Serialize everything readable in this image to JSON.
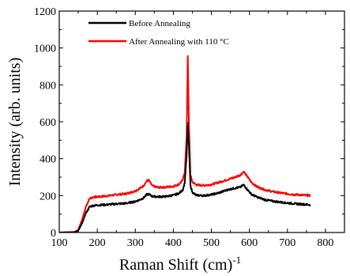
{
  "chart_data": {
    "type": "line",
    "title": "",
    "xlabel": "Raman Shift (cm)",
    "xlabel_sup": "-1",
    "ylabel": "Intensity (arb. units)",
    "xlim": [
      100,
      850
    ],
    "ylim": [
      0,
      1200
    ],
    "x_ticks": [
      "100",
      "200",
      "300",
      "400",
      "500",
      "600",
      "700",
      "800"
    ],
    "y_ticks": [
      "0",
      "200",
      "400",
      "600",
      "800",
      "1000",
      "1200"
    ],
    "legend_position": "top-left",
    "grid": false,
    "series": [
      {
        "name": "Before Annealing",
        "color": "#000000",
        "x": [
          100,
          140,
          150,
          160,
          170,
          180,
          190,
          200,
          225,
          250,
          275,
          300,
          320,
          330,
          335,
          345,
          360,
          380,
          400,
          415,
          425,
          430,
          435,
          438,
          441,
          445,
          450,
          460,
          480,
          500,
          520,
          540,
          560,
          575,
          585,
          595,
          605,
          620,
          640,
          660,
          680,
          700,
          720,
          740,
          760
        ],
        "y": [
          0,
          2,
          10,
          50,
          105,
          140,
          146,
          148,
          151,
          155,
          158,
          168,
          185,
          205,
          208,
          196,
          194,
          195,
          202,
          212,
          232,
          270,
          420,
          590,
          470,
          255,
          218,
          202,
          200,
          205,
          215,
          230,
          240,
          245,
          258,
          232,
          208,
          192,
          178,
          170,
          165,
          160,
          156,
          153,
          150
        ]
      },
      {
        "name": "After Annealing with 110 °C",
        "color": "#ff0000",
        "x": [
          100,
          140,
          150,
          160,
          170,
          180,
          190,
          200,
          225,
          250,
          275,
          300,
          320,
          330,
          335,
          345,
          360,
          380,
          400,
          415,
          425,
          430,
          435,
          438,
          441,
          445,
          450,
          460,
          480,
          500,
          520,
          540,
          560,
          575,
          585,
          595,
          605,
          620,
          640,
          660,
          680,
          700,
          720,
          740,
          760
        ],
        "y": [
          0,
          3,
          15,
          70,
          140,
          185,
          192,
          193,
          198,
          205,
          210,
          225,
          250,
          278,
          285,
          252,
          244,
          246,
          250,
          262,
          285,
          330,
          520,
          960,
          580,
          312,
          275,
          258,
          255,
          260,
          272,
          285,
          298,
          310,
          330,
          302,
          272,
          248,
          232,
          222,
          215,
          210,
          205,
          203,
          200
        ]
      }
    ]
  }
}
